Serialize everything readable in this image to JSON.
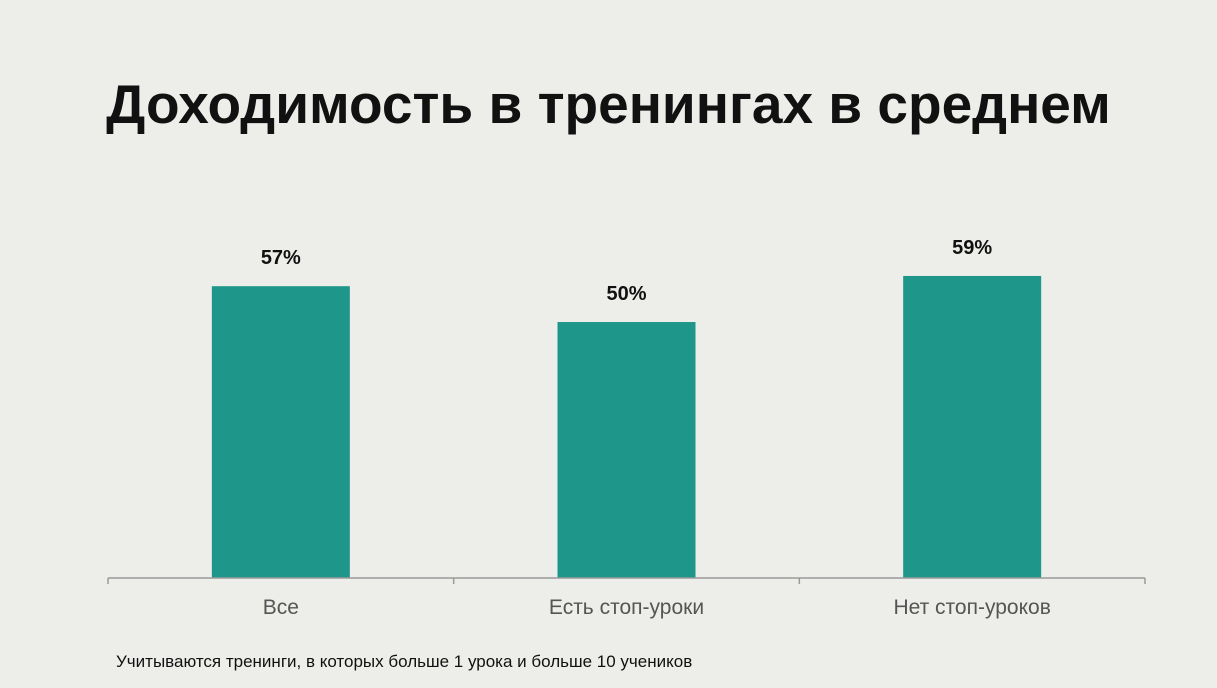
{
  "title": "Доходимость в тренингах в среднем",
  "footnote": "Учитываются тренинги, в которых больше 1 урока и больше 10 учеников",
  "colors": {
    "background": "#ededea",
    "bar": "#1f968a",
    "axis": "#9a9a9a",
    "title": "#111111",
    "category_label": "#555555"
  },
  "chart_data": {
    "type": "bar",
    "categories": [
      "Все",
      "Есть стоп-уроки",
      "Нет стоп-уроков"
    ],
    "values": [
      57,
      50,
      59
    ],
    "data_labels": [
      "57%",
      "50%",
      "59%"
    ],
    "title": "Доходимость в тренингах в среднем",
    "xlabel": "",
    "ylabel": "",
    "ylim": [
      0,
      67
    ],
    "grid": false,
    "legend": "none"
  }
}
